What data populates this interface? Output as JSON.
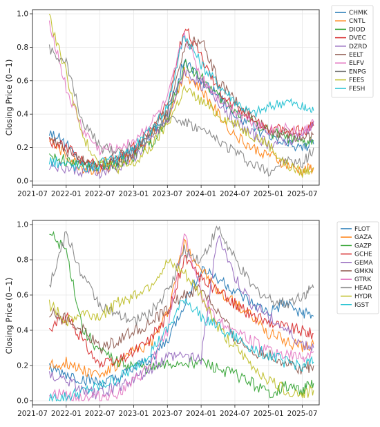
{
  "chart_data": [
    {
      "type": "line",
      "ylabel": "Closing Price (0−1)",
      "ylim": [
        0,
        1.0
      ],
      "xlim": [
        "2021-07",
        "2025-10"
      ],
      "x_ticks": [
        "2021-07",
        "2022-01",
        "2022-07",
        "2023-01",
        "2023-07",
        "2024-01",
        "2024-07",
        "2025-01",
        "2025-07"
      ],
      "y_ticks": [
        "0.0",
        "0.2",
        "0.4",
        "0.6",
        "0.8",
        "1.0"
      ],
      "grid": true,
      "legend_position": "outside-right",
      "x": [
        "2021-10",
        "2022-01",
        "2022-04",
        "2022-07",
        "2022-10",
        "2023-01",
        "2023-04",
        "2023-07",
        "2023-10",
        "2024-01",
        "2024-04",
        "2024-07",
        "2024-10",
        "2025-01",
        "2025-04",
        "2025-07",
        "2025-09"
      ],
      "series": [
        {
          "name": "CHMK",
          "color": "#1f77b4",
          "values": [
            0.3,
            0.22,
            0.1,
            0.08,
            0.12,
            0.18,
            0.28,
            0.4,
            0.72,
            0.6,
            0.52,
            0.4,
            0.34,
            0.26,
            0.22,
            0.2,
            0.22
          ]
        },
        {
          "name": "CNTL",
          "color": "#ff7f0e",
          "values": [
            0.25,
            0.15,
            0.08,
            0.06,
            0.09,
            0.16,
            0.26,
            0.38,
            0.65,
            0.55,
            0.4,
            0.28,
            0.2,
            0.16,
            0.1,
            0.06,
            0.08
          ]
        },
        {
          "name": "DIOD",
          "color": "#2ca02c",
          "values": [
            0.16,
            0.12,
            0.1,
            0.08,
            0.1,
            0.15,
            0.22,
            0.35,
            0.7,
            0.62,
            0.5,
            0.42,
            0.36,
            0.3,
            0.26,
            0.22,
            0.24
          ]
        },
        {
          "name": "DVEC",
          "color": "#d62728",
          "values": [
            0.24,
            0.2,
            0.12,
            0.1,
            0.14,
            0.2,
            0.3,
            0.45,
            0.92,
            0.75,
            0.55,
            0.45,
            0.38,
            0.32,
            0.3,
            0.3,
            0.33
          ]
        },
        {
          "name": "DZRD",
          "color": "#9467bd",
          "values": [
            0.1,
            0.08,
            0.06,
            0.05,
            0.08,
            0.14,
            0.24,
            0.36,
            0.66,
            0.58,
            0.48,
            0.36,
            0.28,
            0.22,
            0.24,
            0.26,
            0.36
          ]
        },
        {
          "name": "EELT",
          "color": "#8c564b",
          "values": [
            0.28,
            0.18,
            0.12,
            0.1,
            0.12,
            0.18,
            0.3,
            0.42,
            0.8,
            0.85,
            0.6,
            0.48,
            0.38,
            0.3,
            0.28,
            0.26,
            0.28
          ]
        },
        {
          "name": "ELFV",
          "color": "#e377c2",
          "values": [
            0.96,
            0.55,
            0.3,
            0.18,
            0.2,
            0.24,
            0.34,
            0.48,
            0.88,
            0.62,
            0.5,
            0.42,
            0.36,
            0.3,
            0.32,
            0.28,
            0.35
          ]
        },
        {
          "name": "ENPG",
          "color": "#7f7f7f",
          "values": [
            0.8,
            0.7,
            0.35,
            0.2,
            0.18,
            0.2,
            0.28,
            0.38,
            0.35,
            0.3,
            0.24,
            0.18,
            0.1,
            0.06,
            0.12,
            0.1,
            0.2
          ]
        },
        {
          "name": "FEES",
          "color": "#bcbd22",
          "values": [
            0.98,
            0.65,
            0.25,
            0.12,
            0.08,
            0.1,
            0.2,
            0.34,
            0.55,
            0.48,
            0.4,
            0.34,
            0.28,
            0.22,
            0.1,
            0.05,
            0.08
          ]
        },
        {
          "name": "FESH",
          "color": "#17becf",
          "values": [
            0.12,
            0.1,
            0.08,
            0.1,
            0.14,
            0.2,
            0.3,
            0.45,
            0.88,
            0.7,
            0.58,
            0.48,
            0.4,
            0.44,
            0.48,
            0.44,
            0.42
          ]
        }
      ]
    },
    {
      "type": "line",
      "ylabel": "Closing Price (0−1)",
      "ylim": [
        0,
        1.0
      ],
      "xlim": [
        "2021-07",
        "2025-10"
      ],
      "x_ticks": [
        "2021-07",
        "2022-01",
        "2022-07",
        "2023-01",
        "2023-07",
        "2024-01",
        "2024-07",
        "2025-01",
        "2025-07"
      ],
      "y_ticks": [
        "0.0",
        "0.2",
        "0.4",
        "0.6",
        "0.8",
        "1.0"
      ],
      "grid": true,
      "legend_position": "outside-right",
      "x": [
        "2021-10",
        "2022-01",
        "2022-04",
        "2022-07",
        "2022-10",
        "2023-01",
        "2023-04",
        "2023-07",
        "2023-10",
        "2024-01",
        "2024-04",
        "2024-07",
        "2024-10",
        "2025-01",
        "2025-04",
        "2025-07",
        "2025-09"
      ],
      "series": [
        {
          "name": "FLOT",
          "color": "#1f77b4",
          "values": [
            0.18,
            0.15,
            0.12,
            0.1,
            0.12,
            0.18,
            0.24,
            0.34,
            0.55,
            0.75,
            0.7,
            0.62,
            0.55,
            0.5,
            0.55,
            0.5,
            0.48
          ]
        },
        {
          "name": "GAZA",
          "color": "#ff7f0e",
          "values": [
            0.2,
            0.22,
            0.18,
            0.15,
            0.2,
            0.28,
            0.32,
            0.5,
            0.9,
            0.75,
            0.62,
            0.55,
            0.48,
            0.38,
            0.34,
            0.3,
            0.32
          ]
        },
        {
          "name": "GAZP",
          "color": "#2ca02c",
          "values": [
            0.95,
            0.85,
            0.4,
            0.28,
            0.22,
            0.2,
            0.18,
            0.2,
            0.22,
            0.22,
            0.18,
            0.15,
            0.1,
            0.04,
            0.08,
            0.06,
            0.1
          ]
        },
        {
          "name": "GCHE",
          "color": "#d62728",
          "values": [
            0.4,
            0.48,
            0.34,
            0.2,
            0.22,
            0.28,
            0.35,
            0.48,
            0.8,
            0.7,
            0.62,
            0.55,
            0.48,
            0.45,
            0.42,
            0.4,
            0.38
          ]
        },
        {
          "name": "GEMA",
          "color": "#9467bd",
          "values": [
            0.14,
            0.12,
            0.05,
            0.04,
            0.08,
            0.12,
            0.18,
            0.25,
            0.26,
            0.24,
            0.95,
            0.7,
            0.55,
            0.48,
            0.4,
            0.32,
            0.3
          ]
        },
        {
          "name": "GMKN",
          "color": "#8c564b",
          "values": [
            0.5,
            0.46,
            0.4,
            0.3,
            0.34,
            0.4,
            0.44,
            0.52,
            0.6,
            0.64,
            0.5,
            0.36,
            0.28,
            0.26,
            0.22,
            0.18,
            0.2
          ]
        },
        {
          "name": "GTRK",
          "color": "#e377c2",
          "values": [
            0.04,
            0.03,
            0.02,
            0.02,
            0.04,
            0.1,
            0.2,
            0.4,
            0.95,
            0.6,
            0.45,
            0.4,
            0.34,
            0.28,
            0.26,
            0.24,
            0.28
          ]
        },
        {
          "name": "HEAD",
          "color": "#7f7f7f",
          "values": [
            0.65,
            0.95,
            0.7,
            0.55,
            0.48,
            0.45,
            0.5,
            0.62,
            0.85,
            0.8,
            0.98,
            0.8,
            0.65,
            0.58,
            0.55,
            0.6,
            0.64
          ]
        },
        {
          "name": "HYDR",
          "color": "#bcbd22",
          "values": [
            0.55,
            0.45,
            0.5,
            0.48,
            0.55,
            0.6,
            0.66,
            0.78,
            0.72,
            0.6,
            0.42,
            0.3,
            0.2,
            0.12,
            0.06,
            0.04,
            0.06
          ]
        },
        {
          "name": "IGST",
          "color": "#17becf",
          "values": [
            0.01,
            0.02,
            0.05,
            0.08,
            0.12,
            0.18,
            0.28,
            0.4,
            0.58,
            0.48,
            0.42,
            0.36,
            0.3,
            0.26,
            0.22,
            0.2,
            0.22
          ]
        }
      ]
    }
  ]
}
